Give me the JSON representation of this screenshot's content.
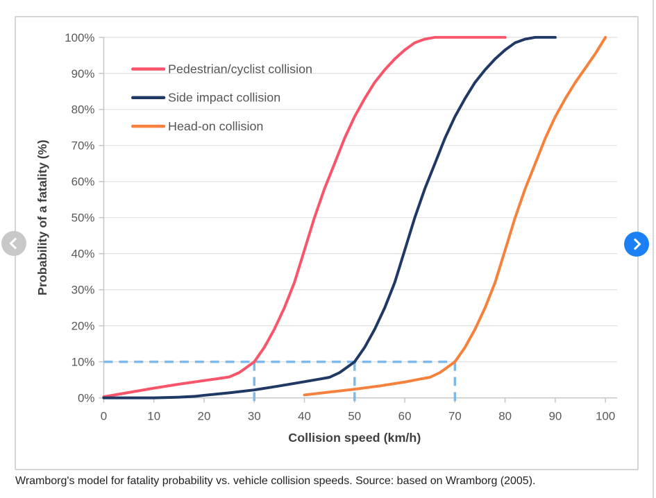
{
  "caption": "Wramborg's model for fatality probability vs. vehicle collision speeds. Source: based on Wramborg (2005).",
  "carousel": {
    "prev_icon": "chevron-left",
    "next_icon": "chevron-right",
    "prev_bg_color": "#c8c8c8",
    "next_bg_color": "#1b80f3"
  },
  "chart_data": {
    "type": "line",
    "title": "",
    "xlabel": "Collision speed (km/h)",
    "ylabel": "Probability of a fatality (%)",
    "xlim": [
      0,
      100
    ],
    "ylim": [
      0,
      100
    ],
    "x_ticks": [
      "0",
      "10",
      "20",
      "30",
      "40",
      "50",
      "60",
      "70",
      "80",
      "90",
      "100"
    ],
    "y_ticks": [
      "0%",
      "10%",
      "20%",
      "30%",
      "40%",
      "50%",
      "60%",
      "70%",
      "80%",
      "90%",
      "100%"
    ],
    "grid": "horizontal",
    "legend_position": "inside-top-left",
    "style": {
      "grid_color": "#e2e2e2",
      "axis_color": "#c3c6c9",
      "tick_label_color": "#595959",
      "axis_title_color": "#404040",
      "legend_text_color": "#555555",
      "reference_line_color": "#7db9ea"
    },
    "series": [
      {
        "name": "Pedestrian/cyclist collision",
        "color": "#f8556a",
        "points": [
          [
            0,
            0.3
          ],
          [
            5,
            1.5
          ],
          [
            10,
            2.7
          ],
          [
            15,
            3.8
          ],
          [
            20,
            4.8
          ],
          [
            23,
            5.4
          ],
          [
            25,
            5.8
          ],
          [
            27,
            7
          ],
          [
            28,
            8
          ],
          [
            30,
            10
          ],
          [
            32,
            14
          ],
          [
            34,
            19
          ],
          [
            36,
            25
          ],
          [
            38,
            32
          ],
          [
            40,
            41
          ],
          [
            42,
            50
          ],
          [
            44,
            58
          ],
          [
            46,
            65
          ],
          [
            48,
            72
          ],
          [
            50,
            78
          ],
          [
            52,
            83
          ],
          [
            54,
            87.5
          ],
          [
            56,
            91
          ],
          [
            58,
            94
          ],
          [
            60,
            96.5
          ],
          [
            62,
            98.5
          ],
          [
            64,
            99.5
          ],
          [
            66,
            100
          ],
          [
            70,
            100
          ],
          [
            75,
            100
          ],
          [
            80,
            100
          ]
        ]
      },
      {
        "name": "Side impact collision",
        "color": "#1f3864",
        "points": [
          [
            0,
            0
          ],
          [
            5,
            0
          ],
          [
            10,
            0
          ],
          [
            15,
            0.2
          ],
          [
            18,
            0.4
          ],
          [
            20,
            0.7
          ],
          [
            25,
            1.4
          ],
          [
            30,
            2.2
          ],
          [
            35,
            3.3
          ],
          [
            40,
            4.5
          ],
          [
            43,
            5.2
          ],
          [
            45,
            5.7
          ],
          [
            47,
            7
          ],
          [
            48,
            8
          ],
          [
            50,
            10
          ],
          [
            52,
            14
          ],
          [
            54,
            19
          ],
          [
            56,
            25
          ],
          [
            58,
            32
          ],
          [
            60,
            41
          ],
          [
            62,
            50
          ],
          [
            64,
            58
          ],
          [
            66,
            65
          ],
          [
            68,
            72
          ],
          [
            70,
            78
          ],
          [
            72,
            83
          ],
          [
            74,
            87.5
          ],
          [
            76,
            91
          ],
          [
            78,
            94
          ],
          [
            80,
            96.5
          ],
          [
            82,
            98.5
          ],
          [
            84,
            99.5
          ],
          [
            86,
            100
          ],
          [
            90,
            100
          ]
        ]
      },
      {
        "name": "Head-on collision",
        "color": "#f5813c",
        "points": [
          [
            40,
            0.8
          ],
          [
            45,
            1.6
          ],
          [
            50,
            2.4
          ],
          [
            55,
            3.3
          ],
          [
            60,
            4.4
          ],
          [
            63,
            5.2
          ],
          [
            65,
            5.7
          ],
          [
            67,
            7
          ],
          [
            68,
            8
          ],
          [
            70,
            10
          ],
          [
            72,
            14
          ],
          [
            74,
            19
          ],
          [
            76,
            25
          ],
          [
            78,
            32
          ],
          [
            80,
            41
          ],
          [
            82,
            50
          ],
          [
            84,
            58
          ],
          [
            86,
            65
          ],
          [
            88,
            72
          ],
          [
            90,
            78
          ],
          [
            92,
            83
          ],
          [
            94,
            87.5
          ],
          [
            96,
            91.5
          ],
          [
            98,
            95.5
          ],
          [
            100,
            100
          ]
        ]
      }
    ],
    "reference_lines": {
      "meaning": "10% fatality probability thresholds",
      "horizontal": {
        "y": 10,
        "x_from": 0,
        "x_to": 70
      },
      "vertical_xs": [
        30,
        50,
        70
      ]
    }
  }
}
